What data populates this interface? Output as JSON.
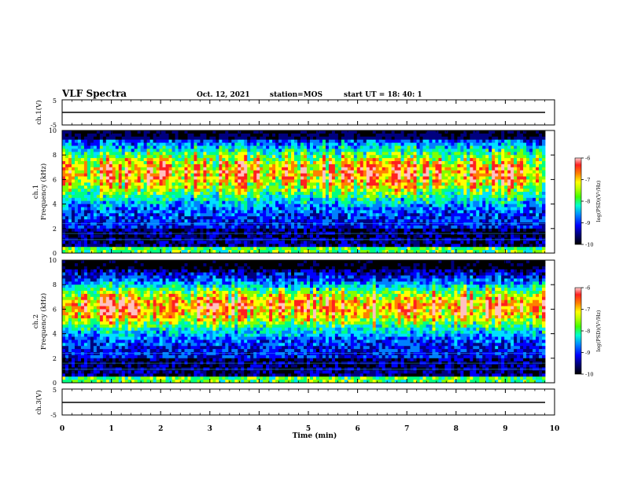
{
  "header": {
    "title": "VLF Spectra",
    "date": "Oct. 12, 2021",
    "station": "station=MOS",
    "start_ut": "start  UT =   18: 40: 1"
  },
  "colors": {
    "spectrogram_scale": [
      "#000000",
      "#00007f",
      "#0000ff",
      "#0080ff",
      "#00e0ff",
      "#00ff80",
      "#80ff00",
      "#ffff00",
      "#ff8000",
      "#ff2020",
      "#ffc0c0"
    ]
  },
  "chart_data": [
    {
      "type": "line",
      "ylabel": "ch.1(V)",
      "ylim": [
        -5,
        5
      ],
      "yticks": [
        "5",
        "-5"
      ],
      "series": [
        {
          "values_note_free": true,
          "level": 0
        }
      ]
    },
    {
      "type": "heatmap",
      "ylabel_channel": "ch.1",
      "ylabel": "Frequency (kHz)",
      "ylim": [
        0,
        10
      ],
      "yticks": [
        "0",
        "2",
        "4",
        "6",
        "8",
        "10"
      ],
      "colorbar": {
        "label": "log(PSD)(V²/Hz)",
        "range": [
          -10,
          -6
        ],
        "ticks": [
          "-6",
          "-7",
          "-8",
          "-9",
          "-10"
        ]
      }
    },
    {
      "type": "heatmap",
      "ylabel_channel": "ch.2",
      "ylabel": "Frequency (kHz)",
      "ylim": [
        0,
        10
      ],
      "yticks": [
        "0",
        "2",
        "4",
        "6",
        "8",
        "10"
      ],
      "colorbar": {
        "label": "log(PSD)(V²/Hz)",
        "range": [
          -10,
          -6
        ],
        "ticks": [
          "-6",
          "-7",
          "-8",
          "-9",
          "-10"
        ]
      }
    },
    {
      "type": "line",
      "ylabel": "ch.3(V)",
      "ylim": [
        -5,
        5
      ],
      "yticks": [
        "5",
        "-5"
      ],
      "series": [
        {
          "level": 0
        }
      ]
    }
  ],
  "xaxis": {
    "label": "Time (min)",
    "range": [
      0,
      10
    ],
    "ticks": [
      "0",
      "1",
      "2",
      "3",
      "4",
      "5",
      "6",
      "7",
      "8",
      "9",
      "10"
    ]
  }
}
